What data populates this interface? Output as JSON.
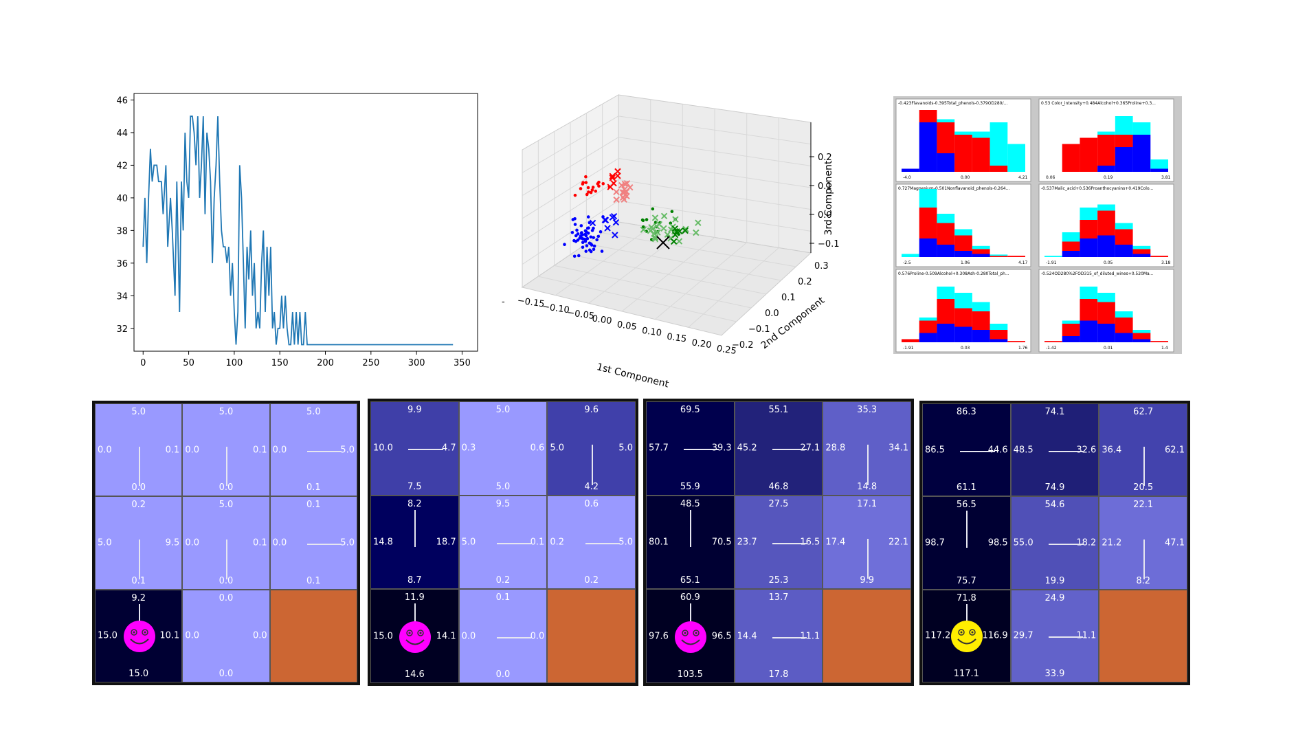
{
  "line_chart": {
    "type": "line",
    "xlim": [
      0,
      350
    ],
    "ylim": [
      31,
      46
    ],
    "x_ticks": [
      0,
      50,
      100,
      150,
      200,
      250,
      300,
      350
    ],
    "y_ticks": [
      32,
      34,
      36,
      38,
      40,
      42,
      44,
      46
    ],
    "line_color": "#1f77b4",
    "points": [
      [
        0,
        37
      ],
      [
        2,
        40
      ],
      [
        4,
        36
      ],
      [
        6,
        40
      ],
      [
        8,
        43
      ],
      [
        10,
        41
      ],
      [
        12,
        42
      ],
      [
        15,
        42
      ],
      [
        17,
        41
      ],
      [
        20,
        41
      ],
      [
        22,
        39
      ],
      [
        25,
        42
      ],
      [
        27,
        37
      ],
      [
        30,
        40
      ],
      [
        32,
        38
      ],
      [
        35,
        34
      ],
      [
        37,
        41
      ],
      [
        40,
        33
      ],
      [
        42,
        41
      ],
      [
        44,
        38
      ],
      [
        46,
        44
      ],
      [
        48,
        41
      ],
      [
        50,
        40
      ],
      [
        52,
        45
      ],
      [
        54,
        45
      ],
      [
        56,
        44
      ],
      [
        58,
        42
      ],
      [
        60,
        45
      ],
      [
        62,
        40
      ],
      [
        64,
        42
      ],
      [
        66,
        45
      ],
      [
        68,
        39
      ],
      [
        70,
        44
      ],
      [
        72,
        43
      ],
      [
        74,
        41
      ],
      [
        76,
        36
      ],
      [
        78,
        40
      ],
      [
        80,
        42
      ],
      [
        82,
        45
      ],
      [
        84,
        41
      ],
      [
        86,
        38
      ],
      [
        88,
        37
      ],
      [
        90,
        37
      ],
      [
        92,
        36
      ],
      [
        94,
        37
      ],
      [
        96,
        34
      ],
      [
        98,
        36
      ],
      [
        100,
        33
      ],
      [
        102,
        31
      ],
      [
        104,
        33
      ],
      [
        106,
        42
      ],
      [
        108,
        40
      ],
      [
        110,
        36
      ],
      [
        112,
        32
      ],
      [
        114,
        37
      ],
      [
        116,
        35
      ],
      [
        118,
        38
      ],
      [
        120,
        34
      ],
      [
        122,
        36
      ],
      [
        124,
        32
      ],
      [
        126,
        33
      ],
      [
        128,
        32
      ],
      [
        130,
        36
      ],
      [
        132,
        38
      ],
      [
        134,
        33
      ],
      [
        136,
        37
      ],
      [
        138,
        34
      ],
      [
        140,
        37
      ],
      [
        142,
        32
      ],
      [
        144,
        33
      ],
      [
        146,
        31
      ],
      [
        148,
        32
      ],
      [
        150,
        32
      ],
      [
        152,
        34
      ],
      [
        154,
        32
      ],
      [
        156,
        34
      ],
      [
        158,
        32
      ],
      [
        160,
        31
      ],
      [
        162,
        31
      ],
      [
        164,
        33
      ],
      [
        166,
        31
      ],
      [
        168,
        33
      ],
      [
        170,
        31
      ],
      [
        172,
        33
      ],
      [
        174,
        31
      ],
      [
        176,
        31
      ],
      [
        178,
        33
      ],
      [
        180,
        31
      ],
      [
        182,
        31
      ],
      [
        190,
        31
      ],
      [
        200,
        31
      ],
      [
        250,
        31
      ],
      [
        300,
        31
      ],
      [
        340,
        31
      ]
    ]
  },
  "scatter3d": {
    "type": "scatter",
    "xlabel": "1st Component",
    "ylabel": "2nd Component",
    "zlabel": "3rd Component",
    "x_ticks": [
      "−0.15",
      "−0.10",
      "−0.05",
      "0.00",
      "0.05",
      "0.10",
      "0.15",
      "0.20",
      "0.25"
    ],
    "y_ticks": [
      "−0.2",
      "−0.1",
      "0.0",
      "0.1",
      "0.2",
      "0.3"
    ],
    "z_ticks": [
      "0.2",
      "0.1",
      "0.0",
      "−0.1"
    ],
    "offset_label": "-",
    "colors": {
      "class1": "#0000ff",
      "class2": "#ff0000",
      "class3": "#008000",
      "light_red": "#f08080",
      "light_green": "#66bb66"
    }
  },
  "histograms": {
    "type": "bar",
    "panels": [
      {
        "title": "-0.423Flavanoids-0.395Total_phenols-0.379OD280/...",
        "ticks": [
          "-4.0",
          "0.00",
          "4.21"
        ]
      },
      {
        "title": "0.53 Color_intensity+0.484Alcohol+0.365Proline+0.3...",
        "ticks": [
          "0.06",
          "0.19",
          "3.81"
        ]
      },
      {
        "title": "0.727Magnesium-0.501Nonflavanoid_phenols-0.264...",
        "ticks": [
          "-2.5",
          "1.06",
          "4.17"
        ]
      },
      {
        "title": "-0.537Malic_acid+0.536Proanthocyanins+0.419Colo...",
        "ticks": [
          "-1.91",
          "0.05",
          "3.18"
        ]
      },
      {
        "title": "0.576Proline-0.509Alcohol+0.308Ash-0.280Total_ph...",
        "ticks": [
          "-1.91",
          "0.03",
          "1.76"
        ]
      },
      {
        "title": "-0.524OD280%2FOD315_of_diluted_wines+0.520Ma...",
        "ticks": [
          "-1.42",
          "0.01",
          "1.4"
        ]
      }
    ],
    "colors": {
      "cyan": "#00ffff",
      "red": "#ff0000",
      "blue": "#0000ff"
    }
  },
  "gridworlds": [
    {
      "agent_color": "#ff00ff",
      "cells": [
        {
          "r": 0,
          "c": 0,
          "color": "#9999ff",
          "top": "5.0",
          "left": "0.0",
          "right": "0.1",
          "bottom": "0.0",
          "dir": "down"
        },
        {
          "r": 0,
          "c": 1,
          "color": "#9999ff",
          "top": "5.0",
          "left": "0.0",
          "right": "0.1",
          "bottom": "0.0",
          "dir": "down"
        },
        {
          "r": 0,
          "c": 2,
          "color": "#9999ff",
          "top": "5.0",
          "left": "0.0",
          "right": "5.0",
          "bottom": "0.1",
          "dir": "right"
        },
        {
          "r": 1,
          "c": 0,
          "color": "#9999ff",
          "top": "0.2",
          "left": "5.0",
          "right": "9.5",
          "bottom": "0.1",
          "dir": "down"
        },
        {
          "r": 1,
          "c": 1,
          "color": "#9999ff",
          "top": "5.0",
          "left": "0.0",
          "right": "0.1",
          "bottom": "0.0",
          "dir": "down"
        },
        {
          "r": 1,
          "c": 2,
          "color": "#9999ff",
          "top": "0.1",
          "left": "0.0",
          "right": "5.0",
          "bottom": "0.1",
          "dir": "right"
        },
        {
          "r": 2,
          "c": 0,
          "color": "#000033",
          "top": "9.2",
          "left": "15.0",
          "right": "10.1",
          "bottom": "15.0",
          "dir": "up"
        },
        {
          "r": 2,
          "c": 1,
          "color": "#9999ff",
          "top": "0.0",
          "left": "0.0",
          "right": "0.0",
          "bottom": "0.0",
          "dir": "none"
        },
        {
          "r": 2,
          "c": 2,
          "color": "#cc6633",
          "top": "",
          "left": "",
          "right": "",
          "bottom": "",
          "dir": "none"
        }
      ]
    },
    {
      "agent_color": "#ff00ff",
      "cells": [
        {
          "r": 0,
          "c": 0,
          "color": "#3f3fa8",
          "top": "9.9",
          "left": "10.0",
          "right": "4.7",
          "bottom": "7.5",
          "dir": "right"
        },
        {
          "r": 0,
          "c": 1,
          "color": "#9999ff",
          "top": "5.0",
          "left": "0.3",
          "right": "0.6",
          "bottom": "5.0",
          "dir": "none"
        },
        {
          "r": 0,
          "c": 2,
          "color": "#4040aa",
          "top": "9.6",
          "left": "5.0",
          "right": "5.0",
          "bottom": "4.2",
          "dir": "down"
        },
        {
          "r": 1,
          "c": 0,
          "color": "#00005e",
          "top": "8.2",
          "left": "14.8",
          "right": "18.7",
          "bottom": "8.7",
          "dir": "up"
        },
        {
          "r": 1,
          "c": 1,
          "color": "#9999ff",
          "top": "9.5",
          "left": "5.0",
          "right": "0.1",
          "bottom": "0.2",
          "dir": "right"
        },
        {
          "r": 1,
          "c": 2,
          "color": "#9999ff",
          "top": "0.6",
          "left": "0.2",
          "right": "5.0",
          "bottom": "0.2",
          "dir": "right"
        },
        {
          "r": 2,
          "c": 0,
          "color": "#000022",
          "top": "11.9",
          "left": "15.0",
          "right": "14.1",
          "bottom": "14.6",
          "dir": "up"
        },
        {
          "r": 2,
          "c": 1,
          "color": "#9999ff",
          "top": "0.1",
          "left": "0.0",
          "right": "0.0",
          "bottom": "0.0",
          "dir": "right"
        },
        {
          "r": 2,
          "c": 2,
          "color": "#cc6633",
          "top": "",
          "left": "",
          "right": "",
          "bottom": "",
          "dir": "none"
        }
      ]
    },
    {
      "agent_color": "#ff00ff",
      "cells": [
        {
          "r": 0,
          "c": 0,
          "color": "#00004d",
          "top": "69.5",
          "left": "57.7",
          "right": "39.3",
          "bottom": "55.9",
          "dir": "right"
        },
        {
          "r": 0,
          "c": 1,
          "color": "#22227a",
          "top": "55.1",
          "left": "45.2",
          "right": "27.1",
          "bottom": "46.8",
          "dir": "right"
        },
        {
          "r": 0,
          "c": 2,
          "color": "#5f5fc8",
          "top": "35.3",
          "left": "28.8",
          "right": "34.1",
          "bottom": "14.8",
          "dir": "down"
        },
        {
          "r": 1,
          "c": 0,
          "color": "#000033",
          "top": "48.5",
          "left": "80.1",
          "right": "70.5",
          "bottom": "65.1",
          "dir": "up"
        },
        {
          "r": 1,
          "c": 1,
          "color": "#5656bd",
          "top": "27.5",
          "left": "23.7",
          "right": "16.5",
          "bottom": "25.3",
          "dir": "right"
        },
        {
          "r": 1,
          "c": 2,
          "color": "#6f6fd9",
          "top": "17.1",
          "left": "17.4",
          "right": "22.1",
          "bottom": "9.9",
          "dir": "down"
        },
        {
          "r": 2,
          "c": 0,
          "color": "#000022",
          "top": "60.9",
          "left": "97.6",
          "right": "96.5",
          "bottom": "103.5",
          "dir": "up"
        },
        {
          "r": 2,
          "c": 1,
          "color": "#5c5cc4",
          "top": "13.7",
          "left": "14.4",
          "right": "11.1",
          "bottom": "17.8",
          "dir": "right"
        },
        {
          "r": 2,
          "c": 2,
          "color": "#cc6633",
          "top": "",
          "left": "",
          "right": "",
          "bottom": "",
          "dir": "none"
        }
      ]
    },
    {
      "agent_color": "#ffee00",
      "cells": [
        {
          "r": 0,
          "c": 0,
          "color": "#00003f",
          "top": "86.3",
          "left": "86.5",
          "right": "44.6",
          "bottom": "61.1",
          "dir": "right"
        },
        {
          "r": 0,
          "c": 1,
          "color": "#1f1f77",
          "top": "74.1",
          "left": "48.5",
          "right": "32.6",
          "bottom": "74.9",
          "dir": "right"
        },
        {
          "r": 0,
          "c": 2,
          "color": "#4343ad",
          "top": "62.7",
          "left": "36.4",
          "right": "62.1",
          "bottom": "20.5",
          "dir": "down"
        },
        {
          "r": 1,
          "c": 0,
          "color": "#000033",
          "top": "56.5",
          "left": "98.7",
          "right": "98.5",
          "bottom": "75.7",
          "dir": "up"
        },
        {
          "r": 1,
          "c": 1,
          "color": "#5050b7",
          "top": "54.6",
          "left": "55.0",
          "right": "18.2",
          "bottom": "19.9",
          "dir": "right"
        },
        {
          "r": 1,
          "c": 2,
          "color": "#6d6dd7",
          "top": "22.1",
          "left": "21.2",
          "right": "47.1",
          "bottom": "8.2",
          "dir": "down"
        },
        {
          "r": 2,
          "c": 0,
          "color": "#000022",
          "top": "71.8",
          "left": "117.2",
          "right": "116.9",
          "bottom": "117.1",
          "dir": "up"
        },
        {
          "r": 2,
          "c": 1,
          "color": "#6262ca",
          "top": "24.9",
          "left": "29.7",
          "right": "11.1",
          "bottom": "33.9",
          "dir": "right"
        },
        {
          "r": 2,
          "c": 2,
          "color": "#cc6633",
          "top": "",
          "left": "",
          "right": "",
          "bottom": "",
          "dir": "none"
        }
      ]
    }
  ]
}
